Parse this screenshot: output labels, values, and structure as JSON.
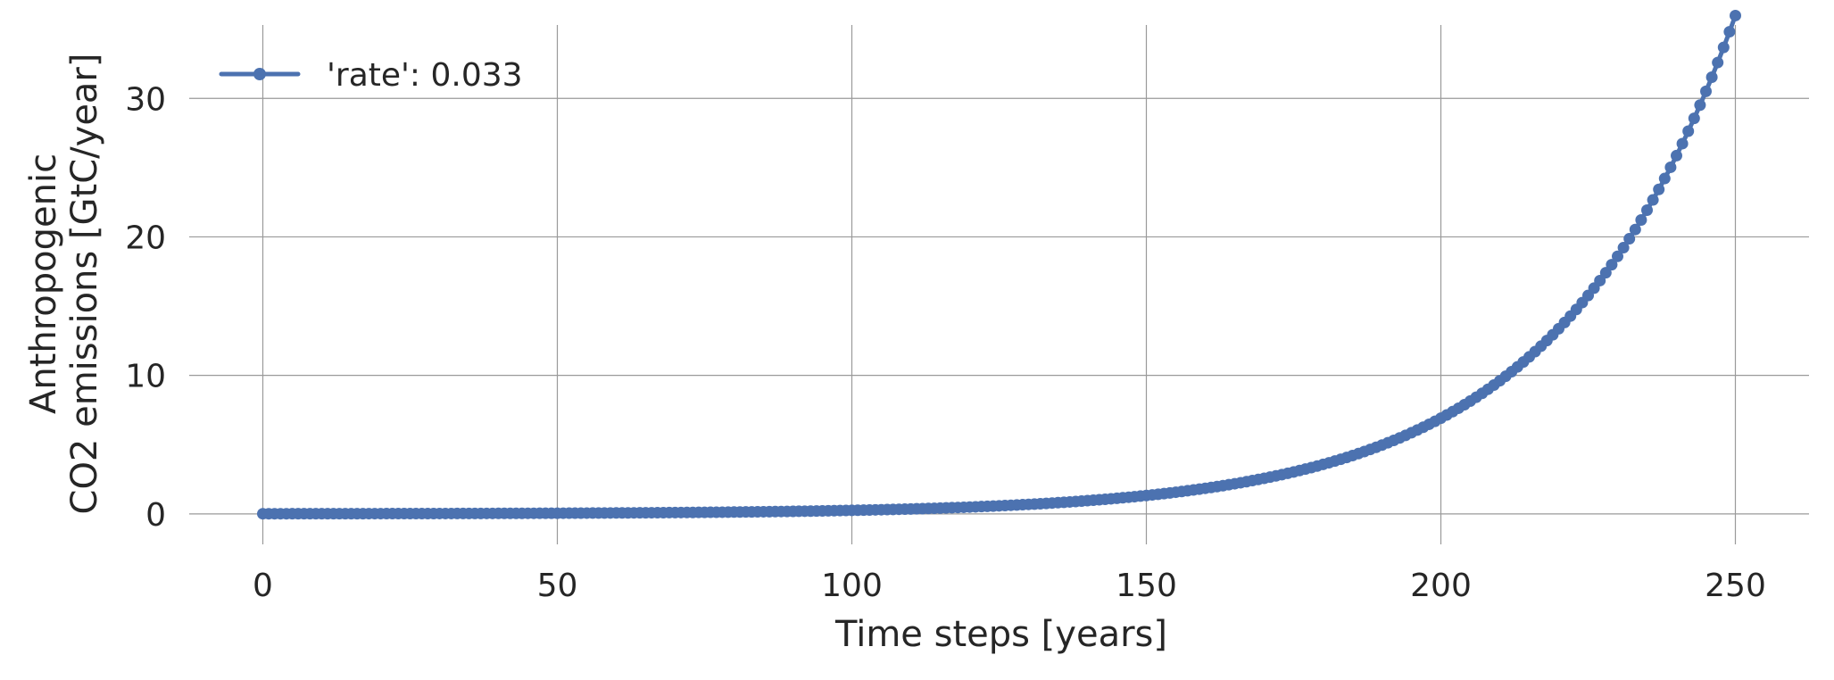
{
  "chart_data": {
    "type": "line",
    "title": "",
    "xlabel": "Time steps [years]",
    "ylabel_lines": [
      "Anthropogenic",
      "CO2 emissions [GtC/year]"
    ],
    "xlim": [
      -12.5,
      262.5
    ],
    "ylim": [
      -2.2,
      35.3
    ],
    "xticks": [
      0,
      50,
      100,
      150,
      200,
      250
    ],
    "yticks": [
      0,
      10,
      20,
      30
    ],
    "xtick_labels": [
      "0",
      "50",
      "100",
      "150",
      "200",
      "250"
    ],
    "ytick_labels": [
      "0",
      "10",
      "20",
      "30"
    ],
    "grid": true,
    "legend_position": "top-left",
    "series": [
      {
        "name": "'rate': 0.033",
        "color": "#4c72b0",
        "marker": "circle",
        "x_start": 0,
        "x_end": 250,
        "x_step": 1,
        "y_start": 0.0094,
        "growth_rate": 0.033
      }
    ]
  }
}
